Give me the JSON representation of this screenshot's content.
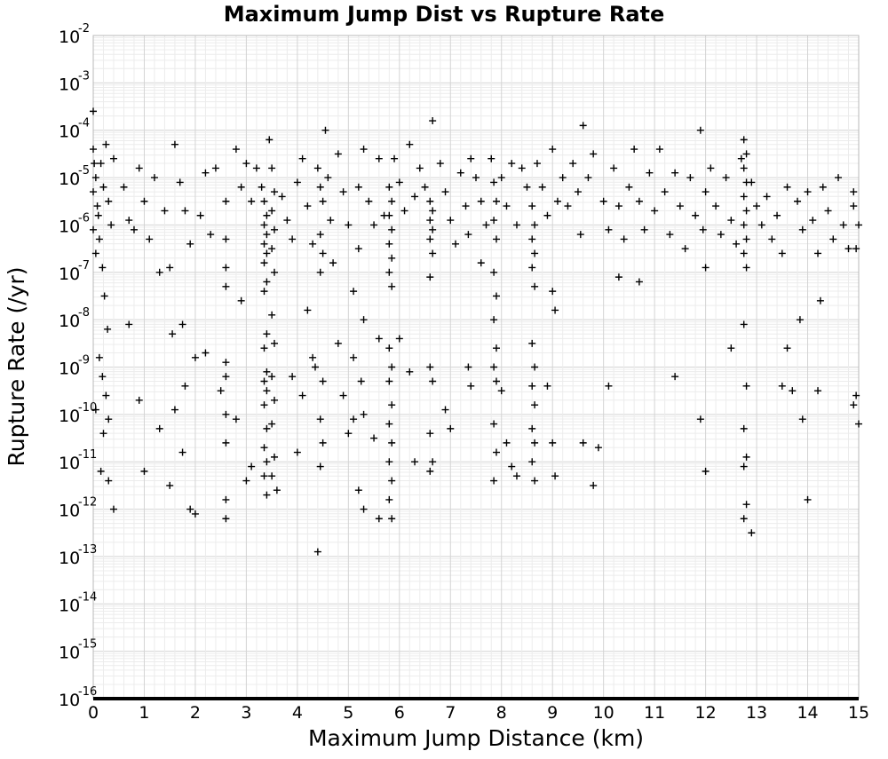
{
  "chart_data": {
    "type": "scatter",
    "title": "Maximum Jump Dist vs Rupture Rate",
    "xlabel": "Maximum Jump Distance (km)",
    "ylabel": "Rupture Rate (/yr)",
    "xlim": [
      0,
      15
    ],
    "ylim_log10": [
      -16,
      -2
    ],
    "y_scale": "log",
    "grid": true,
    "legend": "none",
    "marker": "plus",
    "marker_color": "#000000",
    "x_ticks": [
      "0",
      "1",
      "2",
      "3",
      "4",
      "5",
      "6",
      "7",
      "8",
      "9",
      "10",
      "11",
      "12",
      "13",
      "14",
      "15"
    ],
    "y_ticks": [
      {
        "base": "10",
        "exp": "-2"
      },
      {
        "base": "10",
        "exp": "-3"
      },
      {
        "base": "10",
        "exp": "-4"
      },
      {
        "base": "10",
        "exp": "-5"
      },
      {
        "base": "10",
        "exp": "-6"
      },
      {
        "base": "10",
        "exp": "-7"
      },
      {
        "base": "10",
        "exp": "-8"
      },
      {
        "base": "10",
        "exp": "-9"
      },
      {
        "base": "10",
        "exp": "-10"
      },
      {
        "base": "10",
        "exp": "-11"
      },
      {
        "base": "10",
        "exp": "-12"
      },
      {
        "base": "10",
        "exp": "-13"
      },
      {
        "base": "10",
        "exp": "-14"
      },
      {
        "base": "10",
        "exp": "-15"
      },
      {
        "base": "10",
        "exp": "-16"
      }
    ],
    "points_log10": [
      [
        0.0,
        -3.6
      ],
      [
        0.0,
        -4.4
      ],
      [
        0.02,
        -4.7
      ],
      [
        0.05,
        -5.0
      ],
      [
        0.0,
        -5.3
      ],
      [
        0.08,
        -5.6
      ],
      [
        0.1,
        -5.8
      ],
      [
        0.0,
        -6.1
      ],
      [
        0.12,
        -6.3
      ],
      [
        0.05,
        -6.6
      ],
      [
        0.15,
        -4.7
      ],
      [
        0.2,
        -5.2
      ],
      [
        0.25,
        -4.3
      ],
      [
        0.3,
        -5.5
      ],
      [
        0.35,
        -6.0
      ],
      [
        0.4,
        -4.6
      ],
      [
        0.18,
        -6.9
      ],
      [
        0.22,
        -7.5
      ],
      [
        0.28,
        -8.2
      ],
      [
        0.12,
        -8.8
      ],
      [
        0.18,
        -9.2
      ],
      [
        0.25,
        -9.6
      ],
      [
        0.05,
        -9.9
      ],
      [
        0.3,
        -10.1
      ],
      [
        0.2,
        -10.4
      ],
      [
        0.15,
        -11.2
      ],
      [
        0.3,
        -11.4
      ],
      [
        0.4,
        -12.0
      ],
      [
        0.6,
        -5.2
      ],
      [
        0.7,
        -5.9
      ],
      [
        0.8,
        -6.1
      ],
      [
        0.9,
        -4.8
      ],
      [
        1.0,
        -5.5
      ],
      [
        1.1,
        -6.3
      ],
      [
        1.2,
        -5.0
      ],
      [
        1.3,
        -7.0
      ],
      [
        1.4,
        -5.7
      ],
      [
        0.7,
        -8.1
      ],
      [
        0.9,
        -9.7
      ],
      [
        1.0,
        -11.2
      ],
      [
        1.3,
        -10.3
      ],
      [
        1.5,
        -6.9
      ],
      [
        1.6,
        -4.3
      ],
      [
        1.7,
        -5.1
      ],
      [
        1.8,
        -5.7
      ],
      [
        1.9,
        -6.4
      ],
      [
        1.55,
        -8.3
      ],
      [
        1.75,
        -8.1
      ],
      [
        1.8,
        -9.4
      ],
      [
        1.6,
        -9.9
      ],
      [
        1.75,
        -10.8
      ],
      [
        1.5,
        -11.5
      ],
      [
        1.9,
        -12.0
      ],
      [
        2.0,
        -12.1
      ],
      [
        2.1,
        -5.8
      ],
      [
        2.2,
        -4.9
      ],
      [
        2.3,
        -6.2
      ],
      [
        2.4,
        -4.8
      ],
      [
        2.0,
        -8.8
      ],
      [
        2.2,
        -8.7
      ],
      [
        2.5,
        -9.5
      ],
      [
        2.6,
        -5.5
      ],
      [
        2.6,
        -6.3
      ],
      [
        2.6,
        -6.9
      ],
      [
        2.6,
        -7.3
      ],
      [
        2.6,
        -8.9
      ],
      [
        2.6,
        -9.2
      ],
      [
        2.6,
        -10.0
      ],
      [
        2.6,
        -10.6
      ],
      [
        2.6,
        -11.8
      ],
      [
        2.6,
        -12.2
      ],
      [
        2.8,
        -4.4
      ],
      [
        2.9,
        -5.2
      ],
      [
        3.0,
        -4.7
      ],
      [
        3.1,
        -5.5
      ],
      [
        2.8,
        -10.1
      ],
      [
        2.9,
        -7.6
      ],
      [
        3.0,
        -11.4
      ],
      [
        3.1,
        -11.1
      ],
      [
        3.2,
        -4.8
      ],
      [
        3.3,
        -5.2
      ],
      [
        3.35,
        -5.5
      ],
      [
        3.4,
        -5.8
      ],
      [
        3.35,
        -6.0
      ],
      [
        3.4,
        -6.2
      ],
      [
        3.35,
        -6.4
      ],
      [
        3.4,
        -6.6
      ],
      [
        3.35,
        -6.8
      ],
      [
        3.4,
        -7.2
      ],
      [
        3.35,
        -7.4
      ],
      [
        3.4,
        -8.3
      ],
      [
        3.35,
        -8.6
      ],
      [
        3.4,
        -9.1
      ],
      [
        3.35,
        -9.3
      ],
      [
        3.4,
        -9.5
      ],
      [
        3.35,
        -9.8
      ],
      [
        3.4,
        -10.3
      ],
      [
        3.35,
        -10.7
      ],
      [
        3.4,
        -11.0
      ],
      [
        3.35,
        -11.3
      ],
      [
        3.4,
        -11.7
      ],
      [
        3.45,
        -4.2
      ],
      [
        3.5,
        -4.8
      ],
      [
        3.55,
        -5.3
      ],
      [
        3.5,
        -5.7
      ],
      [
        3.55,
        -6.1
      ],
      [
        3.5,
        -6.5
      ],
      [
        3.55,
        -7.0
      ],
      [
        3.5,
        -7.9
      ],
      [
        3.55,
        -8.5
      ],
      [
        3.5,
        -9.2
      ],
      [
        3.55,
        -9.7
      ],
      [
        3.5,
        -10.2
      ],
      [
        3.55,
        -10.9
      ],
      [
        3.5,
        -11.3
      ],
      [
        3.6,
        -11.6
      ],
      [
        3.7,
        -5.4
      ],
      [
        3.8,
        -5.9
      ],
      [
        3.9,
        -6.3
      ],
      [
        4.0,
        -5.1
      ],
      [
        4.1,
        -4.6
      ],
      [
        4.2,
        -5.6
      ],
      [
        4.3,
        -6.4
      ],
      [
        3.9,
        -9.2
      ],
      [
        4.0,
        -10.8
      ],
      [
        4.1,
        -9.6
      ],
      [
        4.2,
        -7.8
      ],
      [
        4.3,
        -8.8
      ],
      [
        4.35,
        -9.0
      ],
      [
        4.4,
        -4.8
      ],
      [
        4.45,
        -5.2
      ],
      [
        4.5,
        -5.5
      ],
      [
        4.45,
        -6.2
      ],
      [
        4.5,
        -6.6
      ],
      [
        4.45,
        -7.0
      ],
      [
        4.5,
        -9.3
      ],
      [
        4.45,
        -10.1
      ],
      [
        4.5,
        -10.6
      ],
      [
        4.45,
        -11.1
      ],
      [
        4.4,
        -12.9
      ],
      [
        4.55,
        -4.0
      ],
      [
        4.6,
        -5.0
      ],
      [
        4.65,
        -5.9
      ],
      [
        4.7,
        -6.8
      ],
      [
        4.8,
        -4.5
      ],
      [
        4.9,
        -5.3
      ],
      [
        5.0,
        -6.0
      ],
      [
        5.1,
        -7.4
      ],
      [
        4.8,
        -8.5
      ],
      [
        4.9,
        -9.6
      ],
      [
        5.0,
        -10.4
      ],
      [
        5.1,
        -8.8
      ],
      [
        5.2,
        -5.2
      ],
      [
        5.3,
        -4.4
      ],
      [
        5.2,
        -6.5
      ],
      [
        5.3,
        -8.0
      ],
      [
        5.25,
        -9.3
      ],
      [
        5.3,
        -10.0
      ],
      [
        5.2,
        -11.6
      ],
      [
        5.3,
        -12.0
      ],
      [
        5.1,
        -10.1
      ],
      [
        5.4,
        -5.5
      ],
      [
        5.5,
        -6.0
      ],
      [
        5.6,
        -4.6
      ],
      [
        5.7,
        -5.8
      ],
      [
        5.5,
        -10.5
      ],
      [
        5.6,
        -8.4
      ],
      [
        5.6,
        -12.2
      ],
      [
        5.8,
        -5.2
      ],
      [
        5.85,
        -5.5
      ],
      [
        5.8,
        -5.8
      ],
      [
        5.85,
        -6.1
      ],
      [
        5.8,
        -6.4
      ],
      [
        5.85,
        -6.7
      ],
      [
        5.8,
        -7.0
      ],
      [
        5.85,
        -7.3
      ],
      [
        5.8,
        -8.6
      ],
      [
        5.85,
        -9.0
      ],
      [
        5.8,
        -9.3
      ],
      [
        5.85,
        -9.8
      ],
      [
        5.8,
        -10.2
      ],
      [
        5.85,
        -10.6
      ],
      [
        5.8,
        -11.0
      ],
      [
        5.85,
        -11.4
      ],
      [
        5.8,
        -11.8
      ],
      [
        5.85,
        -12.2
      ],
      [
        5.9,
        -4.6
      ],
      [
        6.0,
        -5.1
      ],
      [
        6.1,
        -5.7
      ],
      [
        6.2,
        -4.3
      ],
      [
        6.3,
        -5.4
      ],
      [
        6.2,
        -9.1
      ],
      [
        6.0,
        -8.4
      ],
      [
        6.3,
        -11.0
      ],
      [
        6.4,
        -4.8
      ],
      [
        6.5,
        -5.2
      ],
      [
        6.6,
        -5.5
      ],
      [
        6.65,
        -5.7
      ],
      [
        6.6,
        -5.9
      ],
      [
        6.65,
        -6.1
      ],
      [
        6.6,
        -6.3
      ],
      [
        6.65,
        -6.6
      ],
      [
        6.6,
        -7.1
      ],
      [
        6.65,
        -3.8
      ],
      [
        6.6,
        -9.0
      ],
      [
        6.65,
        -9.3
      ],
      [
        6.6,
        -10.4
      ],
      [
        6.65,
        -11.0
      ],
      [
        6.6,
        -11.2
      ],
      [
        6.8,
        -4.7
      ],
      [
        6.9,
        -5.3
      ],
      [
        7.0,
        -5.9
      ],
      [
        7.1,
        -6.4
      ],
      [
        7.0,
        -10.3
      ],
      [
        6.9,
        -9.9
      ],
      [
        7.2,
        -4.9
      ],
      [
        7.3,
        -5.6
      ],
      [
        7.35,
        -6.2
      ],
      [
        7.4,
        -4.6
      ],
      [
        7.5,
        -5.0
      ],
      [
        7.6,
        -5.5
      ],
      [
        7.7,
        -6.0
      ],
      [
        7.35,
        -9.0
      ],
      [
        7.4,
        -9.4
      ],
      [
        7.6,
        -6.8
      ],
      [
        7.8,
        -4.6
      ],
      [
        7.85,
        -5.1
      ],
      [
        7.9,
        -5.5
      ],
      [
        7.85,
        -5.9
      ],
      [
        7.9,
        -6.3
      ],
      [
        7.85,
        -7.0
      ],
      [
        7.9,
        -7.5
      ],
      [
        7.85,
        -8.0
      ],
      [
        7.9,
        -8.6
      ],
      [
        7.85,
        -9.0
      ],
      [
        7.9,
        -9.3
      ],
      [
        7.85,
        -10.2
      ],
      [
        7.9,
        -10.8
      ],
      [
        7.85,
        -11.4
      ],
      [
        8.0,
        -5.0
      ],
      [
        8.1,
        -5.6
      ],
      [
        8.2,
        -4.7
      ],
      [
        8.3,
        -6.0
      ],
      [
        8.0,
        -9.5
      ],
      [
        8.1,
        -10.6
      ],
      [
        8.2,
        -11.1
      ],
      [
        8.3,
        -11.3
      ],
      [
        8.4,
        -4.8
      ],
      [
        8.5,
        -5.2
      ],
      [
        8.6,
        -5.6
      ],
      [
        8.65,
        -6.0
      ],
      [
        8.6,
        -6.3
      ],
      [
        8.65,
        -6.6
      ],
      [
        8.6,
        -6.9
      ],
      [
        8.65,
        -7.3
      ],
      [
        8.6,
        -8.5
      ],
      [
        8.65,
        -9.0
      ],
      [
        8.6,
        -9.4
      ],
      [
        8.65,
        -9.8
      ],
      [
        8.6,
        -10.3
      ],
      [
        8.65,
        -10.6
      ],
      [
        8.6,
        -11.0
      ],
      [
        8.65,
        -11.4
      ],
      [
        8.7,
        -4.7
      ],
      [
        8.8,
        -5.2
      ],
      [
        8.9,
        -5.8
      ],
      [
        9.0,
        -4.4
      ],
      [
        9.1,
        -5.5
      ],
      [
        9.0,
        -7.4
      ],
      [
        9.05,
        -7.8
      ],
      [
        8.9,
        -9.4
      ],
      [
        9.0,
        -10.6
      ],
      [
        9.05,
        -11.3
      ],
      [
        9.2,
        -5.0
      ],
      [
        9.3,
        -5.6
      ],
      [
        9.4,
        -4.7
      ],
      [
        9.5,
        -5.3
      ],
      [
        9.6,
        -3.9
      ],
      [
        9.55,
        -6.2
      ],
      [
        9.7,
        -5.0
      ],
      [
        9.8,
        -4.5
      ],
      [
        9.6,
        -10.6
      ],
      [
        9.8,
        -11.5
      ],
      [
        9.9,
        -10.7
      ],
      [
        10.0,
        -5.5
      ],
      [
        10.1,
        -6.1
      ],
      [
        10.2,
        -4.8
      ],
      [
        10.3,
        -5.6
      ],
      [
        10.4,
        -6.3
      ],
      [
        10.1,
        -9.4
      ],
      [
        10.3,
        -7.1
      ],
      [
        10.5,
        -5.2
      ],
      [
        10.6,
        -4.4
      ],
      [
        10.7,
        -5.5
      ],
      [
        10.8,
        -6.1
      ],
      [
        10.7,
        -7.2
      ],
      [
        10.9,
        -4.9
      ],
      [
        11.0,
        -5.7
      ],
      [
        11.1,
        -4.4
      ],
      [
        11.2,
        -5.3
      ],
      [
        11.3,
        -6.2
      ],
      [
        11.4,
        -4.9
      ],
      [
        11.4,
        -9.2
      ],
      [
        11.5,
        -5.6
      ],
      [
        11.6,
        -6.5
      ],
      [
        11.7,
        -5.0
      ],
      [
        11.8,
        -5.8
      ],
      [
        11.9,
        -4.0
      ],
      [
        11.95,
        -6.1
      ],
      [
        12.0,
        -5.3
      ],
      [
        12.0,
        -6.9
      ],
      [
        11.9,
        -10.1
      ],
      [
        12.0,
        -11.2
      ],
      [
        12.1,
        -4.8
      ],
      [
        12.2,
        -5.6
      ],
      [
        12.3,
        -6.2
      ],
      [
        12.4,
        -5.0
      ],
      [
        12.5,
        -5.9
      ],
      [
        12.5,
        -8.6
      ],
      [
        12.6,
        -6.4
      ],
      [
        12.7,
        -4.6
      ],
      [
        12.75,
        -4.2
      ],
      [
        12.8,
        -4.5
      ],
      [
        12.75,
        -4.8
      ],
      [
        12.8,
        -5.1
      ],
      [
        12.75,
        -5.4
      ],
      [
        12.8,
        -5.7
      ],
      [
        12.75,
        -6.0
      ],
      [
        12.8,
        -6.3
      ],
      [
        12.75,
        -6.6
      ],
      [
        12.8,
        -6.9
      ],
      [
        12.75,
        -8.1
      ],
      [
        12.8,
        -9.4
      ],
      [
        12.75,
        -10.3
      ],
      [
        12.8,
        -10.9
      ],
      [
        12.75,
        -11.1
      ],
      [
        12.8,
        -11.9
      ],
      [
        12.75,
        -12.2
      ],
      [
        12.9,
        -12.5
      ],
      [
        12.9,
        -5.1
      ],
      [
        13.0,
        -5.6
      ],
      [
        13.1,
        -6.0
      ],
      [
        13.2,
        -5.4
      ],
      [
        13.3,
        -6.3
      ],
      [
        13.4,
        -5.8
      ],
      [
        13.5,
        -6.6
      ],
      [
        13.6,
        -5.2
      ],
      [
        13.6,
        -8.6
      ],
      [
        13.5,
        -9.4
      ],
      [
        13.7,
        -9.5
      ],
      [
        13.8,
        -5.5
      ],
      [
        13.9,
        -6.1
      ],
      [
        13.85,
        -8.0
      ],
      [
        13.9,
        -10.1
      ],
      [
        14.0,
        -5.3
      ],
      [
        14.1,
        -5.9
      ],
      [
        14.2,
        -6.6
      ],
      [
        14.25,
        -7.6
      ],
      [
        14.2,
        -9.5
      ],
      [
        14.0,
        -11.8
      ],
      [
        14.3,
        -5.2
      ],
      [
        14.4,
        -5.7
      ],
      [
        14.5,
        -6.3
      ],
      [
        14.6,
        -5.0
      ],
      [
        14.7,
        -6.0
      ],
      [
        14.8,
        -6.5
      ],
      [
        14.9,
        -5.3
      ],
      [
        14.9,
        -5.6
      ],
      [
        14.95,
        -6.5
      ],
      [
        14.95,
        -9.6
      ],
      [
        14.9,
        -9.8
      ],
      [
        15.0,
        -10.2
      ],
      [
        15.0,
        -6.0
      ]
    ],
    "floor_band_log10": -16
  }
}
